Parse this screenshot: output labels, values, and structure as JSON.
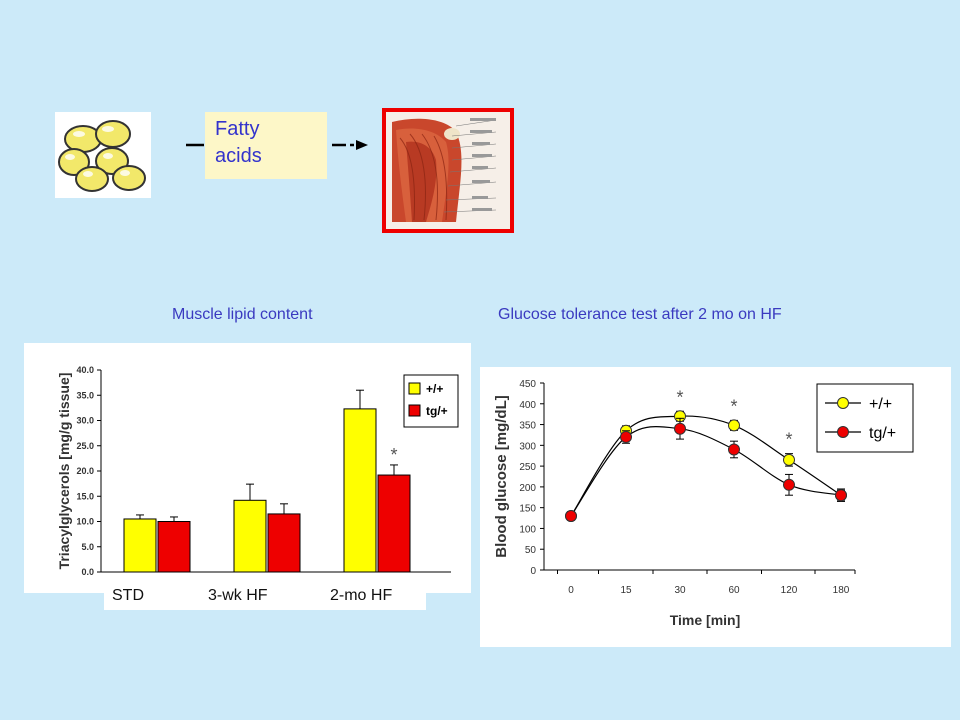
{
  "diagram": {
    "fatty_acids_label": "Fatty acids",
    "muscle_image": "muscle anatomy illustration",
    "fat_cells_image": "adipocytes illustration"
  },
  "captions": {
    "left": "Muscle lipid content",
    "right": "Glucose tolerance test after 2 mo on HF"
  },
  "colors": {
    "background": "#cceaf9",
    "wt": "#ffff00",
    "tg": "#ee0000",
    "caption": "#3a3ac0",
    "frame": "#ee0000"
  },
  "chart_data": [
    {
      "type": "bar",
      "ylabel": "Triacylglycerols [mg/g tissue]",
      "ylim": [
        0,
        40
      ],
      "yticks": [
        "0.0",
        "5.0",
        "10.0",
        "15.0",
        "20.0",
        "25.0",
        "30.0",
        "35.0",
        "40.0"
      ],
      "categories": [
        "STD",
        "3-wk HF",
        "2-mo HF"
      ],
      "series": [
        {
          "name": "+/+",
          "values": [
            10.5,
            14.2,
            32.3
          ],
          "errors": [
            0.8,
            3.2,
            3.7
          ]
        },
        {
          "name": "tg/+",
          "values": [
            10.0,
            11.5,
            19.2
          ],
          "errors": [
            0.9,
            2.0,
            2.0
          ]
        }
      ],
      "annotations": [
        {
          "text": "*",
          "category": "2-mo HF",
          "series": "tg/+"
        }
      ],
      "legend": "top-right"
    },
    {
      "type": "line",
      "xlabel": "Time [min]",
      "ylabel": "Blood glucose [mg/dL]",
      "ylim": [
        0,
        450
      ],
      "yticks": [
        "0",
        "50",
        "100",
        "150",
        "200",
        "250",
        "300",
        "350",
        "400",
        "450"
      ],
      "x": [
        "0",
        "15",
        "30",
        "60",
        "120",
        "180"
      ],
      "series": [
        {
          "name": "+/+",
          "values": [
            130,
            335,
            370,
            348,
            265,
            180
          ],
          "errors": [
            10,
            12,
            12,
            12,
            15,
            12
          ]
        },
        {
          "name": "tg/+",
          "values": [
            130,
            320,
            340,
            290,
            205,
            180
          ],
          "errors": [
            10,
            15,
            25,
            20,
            25,
            15
          ]
        }
      ],
      "annotations": [
        {
          "text": "*",
          "x": "30"
        },
        {
          "text": "*",
          "x": "60"
        },
        {
          "text": "*",
          "x": "120"
        }
      ],
      "legend": "top-right"
    }
  ]
}
